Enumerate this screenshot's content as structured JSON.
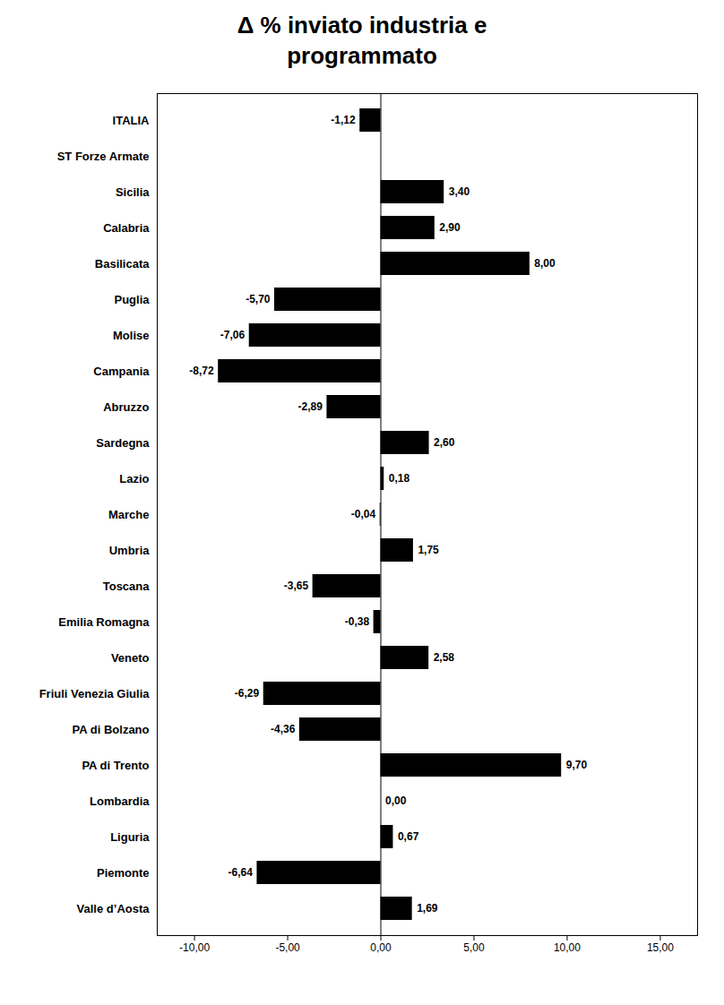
{
  "chart_data": {
    "type": "bar",
    "orientation": "horizontal",
    "title": "Δ  % inviato industria  e\nprogrammato",
    "categories": [
      "ITALIA",
      "ST Forze Armate",
      "Sicilia",
      "Calabria",
      "Basilicata",
      "Puglia",
      "Molise",
      "Campania",
      "Abruzzo",
      "Sardegna",
      "Lazio",
      "Marche",
      "Umbria",
      "Toscana",
      "Emilia Romagna",
      "Veneto",
      "Friuli Venezia Giulia",
      "PA di Bolzano",
      "PA di Trento",
      "Lombardia",
      "Liguria",
      "Piemonte",
      "Valle d’Aosta"
    ],
    "values": [
      -1.12,
      0.0,
      3.4,
      2.9,
      8.0,
      -5.7,
      -7.06,
      -8.72,
      -2.89,
      2.6,
      0.18,
      -0.04,
      1.75,
      -3.65,
      -0.38,
      2.58,
      -6.29,
      -4.36,
      9.7,
      0.0,
      0.67,
      -6.64,
      1.69
    ],
    "value_labels": [
      "-1,12",
      null,
      "3,40",
      "2,90",
      "8,00",
      "-5,70",
      "-7,06",
      "-8,72",
      "-2,89",
      "2,60",
      "0,18",
      "-0,04",
      "1,75",
      "-3,65",
      "-0,38",
      "2,58",
      "-6,29",
      "-4,36",
      "9,70",
      "0,00",
      "0,67",
      "-6,64",
      "1,69"
    ],
    "data_labels": true,
    "xlim": [
      -12.0,
      17.0
    ],
    "xticks": [
      {
        "value": -10.0,
        "label": "-10,00"
      },
      {
        "value": -5.0,
        "label": "-5,00"
      },
      {
        "value": 0.0,
        "label": "0,00"
      },
      {
        "value": 5.0,
        "label": "5,00"
      },
      {
        "value": 10.0,
        "label": "10,00"
      },
      {
        "value": 15.0,
        "label": "15,00"
      }
    ],
    "grid": false
  }
}
